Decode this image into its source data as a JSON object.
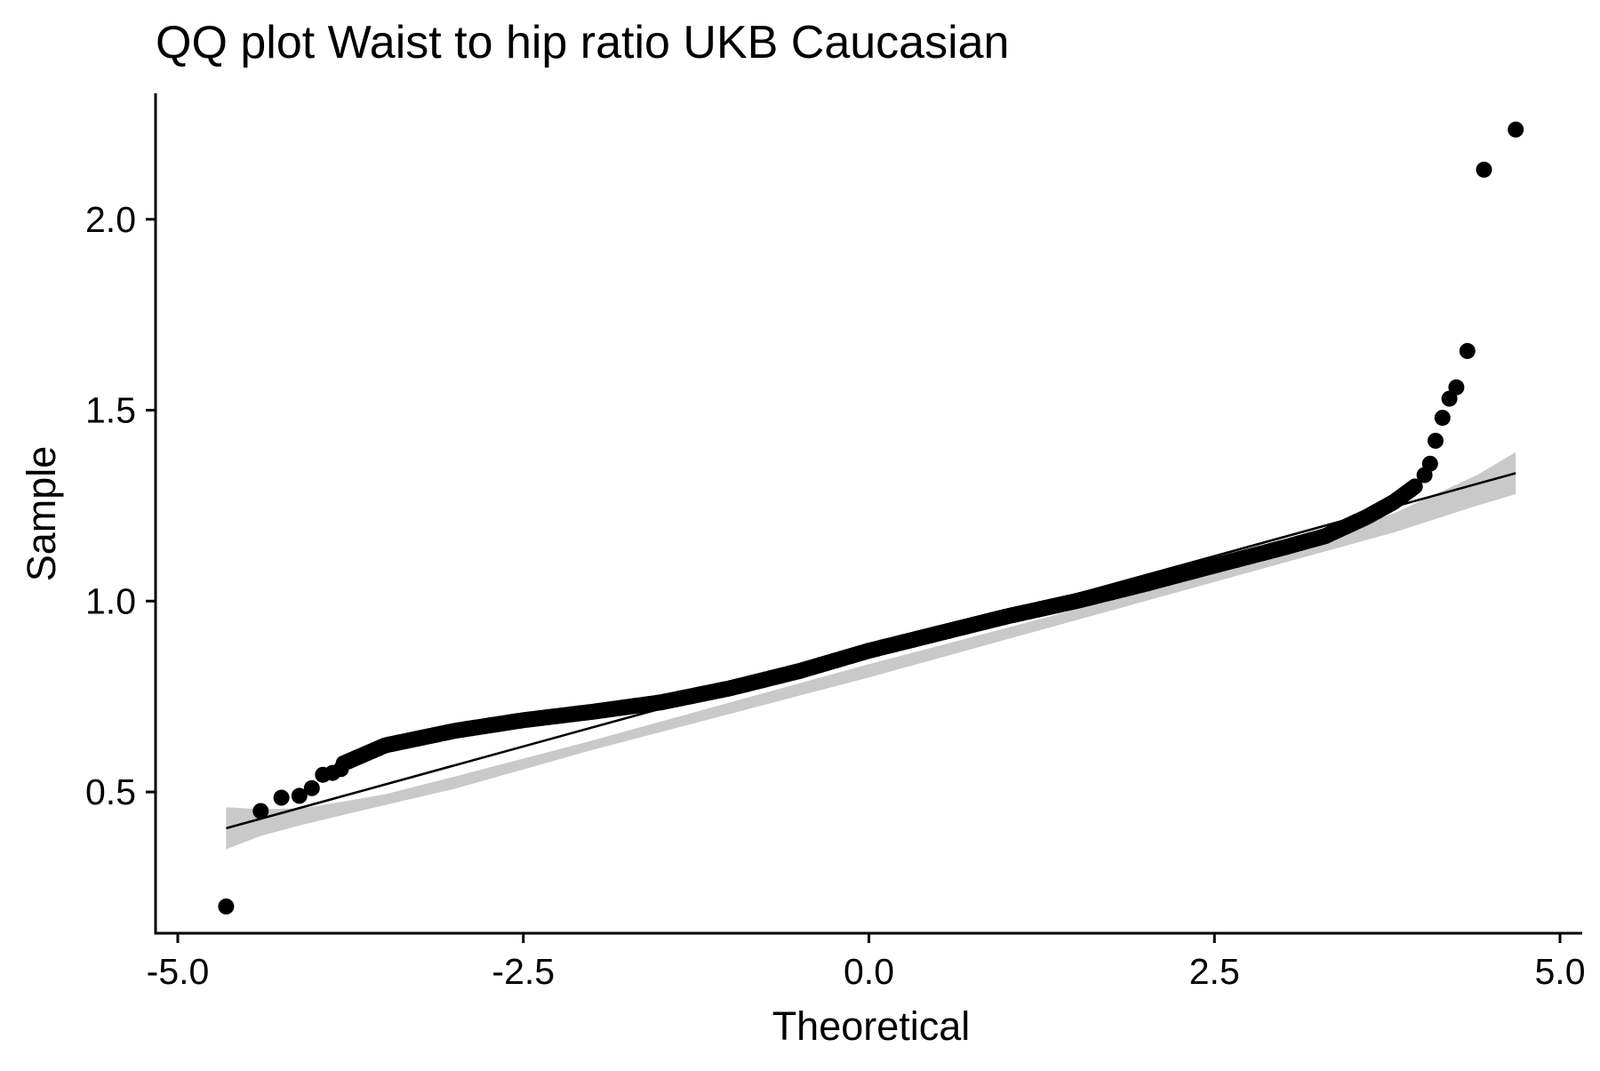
{
  "chart_data": {
    "type": "scatter",
    "title": "QQ plot Waist to hip ratio UKB Caucasian",
    "xlabel": "Theoretical",
    "ylabel": "Sample",
    "xlim": [
      -5.0,
      5.0
    ],
    "ylim": [
      0.13,
      2.33
    ],
    "grid": false,
    "x_ticks": [
      -5.0,
      -2.5,
      0.0,
      2.5,
      5.0
    ],
    "x_tick_labels": [
      "-5.0",
      "-2.5",
      "0.0",
      "2.5",
      "5.0"
    ],
    "y_ticks": [
      0.5,
      1.0,
      1.5,
      2.0
    ],
    "y_tick_labels": [
      "0.5",
      "1.0",
      "1.5",
      "2.0"
    ],
    "colors": {
      "points": "#000000",
      "line": "#000000",
      "band": "#c9c9c9",
      "axis": "#000000"
    },
    "reference_line": {
      "x": [
        -4.65,
        4.68
      ],
      "y": [
        0.405,
        1.335
      ]
    },
    "confidence_band": {
      "x": [
        -4.65,
        -4.4,
        -4.1,
        -3.8,
        -3.5,
        -3.0,
        -2.0,
        -1.0,
        0.0,
        1.0,
        2.0,
        3.0,
        3.5,
        3.8,
        4.1,
        4.4,
        4.68
      ],
      "lower": [
        0.35,
        0.385,
        0.414,
        0.44,
        0.466,
        0.508,
        0.61,
        0.705,
        0.8,
        0.9,
        1.0,
        1.1,
        1.15,
        1.18,
        1.215,
        1.25,
        1.28
      ],
      "upper": [
        0.46,
        0.455,
        0.457,
        0.475,
        0.494,
        0.54,
        0.635,
        0.735,
        0.835,
        0.93,
        1.027,
        1.132,
        1.195,
        1.23,
        1.28,
        1.33,
        1.39
      ]
    },
    "outlier_points": {
      "x": [
        -4.65,
        -4.4,
        -4.25,
        -4.12,
        -4.03,
        -3.95,
        -3.88,
        -3.82,
        4.02,
        4.06,
        4.1,
        4.15,
        4.2,
        4.25,
        4.33,
        4.45,
        4.68
      ],
      "y": [
        0.2,
        0.45,
        0.485,
        0.49,
        0.51,
        0.545,
        0.55,
        0.56,
        1.33,
        1.36,
        1.42,
        1.48,
        1.53,
        1.56,
        1.655,
        2.13,
        2.235
      ]
    },
    "sample_curve": {
      "x": [
        -3.8,
        -3.5,
        -3.0,
        -2.5,
        -2.0,
        -1.5,
        -1.0,
        -0.5,
        0.0,
        0.5,
        1.0,
        1.5,
        2.0,
        2.5,
        3.0,
        3.3,
        3.6,
        3.8,
        3.95
      ],
      "y": [
        0.575,
        0.622,
        0.66,
        0.688,
        0.71,
        0.735,
        0.772,
        0.817,
        0.87,
        0.915,
        0.96,
        1.0,
        1.045,
        1.093,
        1.14,
        1.17,
        1.22,
        1.26,
        1.3
      ]
    }
  }
}
